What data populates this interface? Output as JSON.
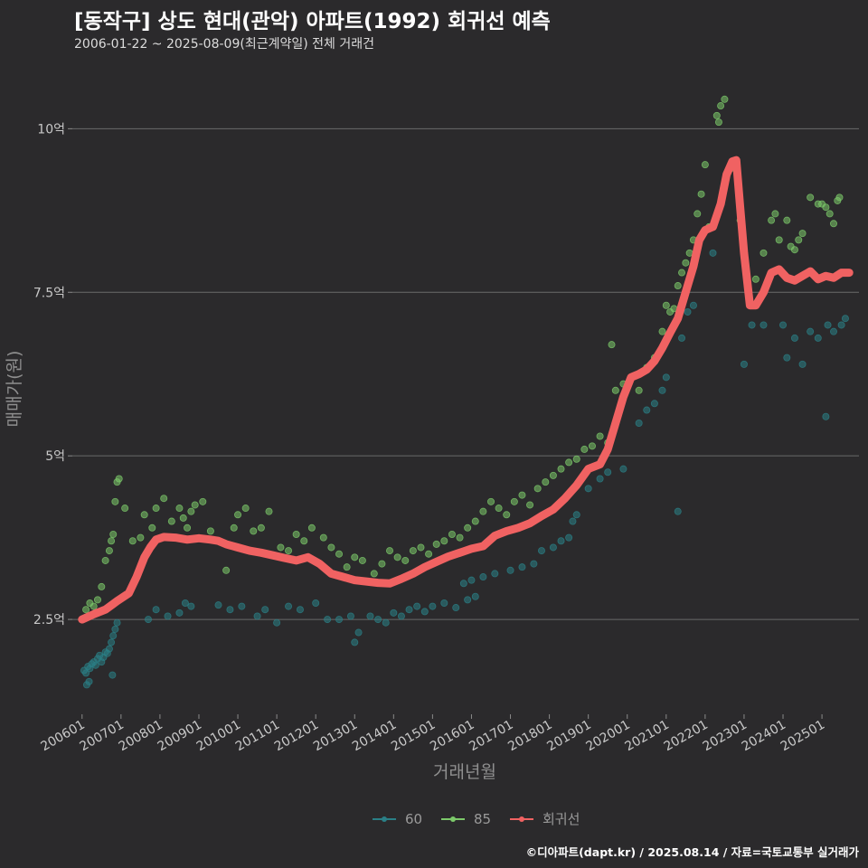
{
  "chart_data": {
    "type": "scatter",
    "title": "[동작구] 상도 현대(관악) 아파트(1992) 회귀선 예측",
    "subtitle": "2006-01-22 ~ 2025-08-09(최근계약일) 전체 거래건",
    "xlabel": "거래년월",
    "ylabel": "매매가(원)",
    "caption": "©디아파트(dapt.kr) / 2025.08.14 / 자료=국토교통부 실거래가",
    "x_ticks": [
      "200601",
      "200701",
      "200801",
      "200901",
      "201001",
      "201101",
      "201201",
      "201301",
      "201401",
      "201501",
      "201601",
      "201701",
      "201801",
      "201901",
      "202001",
      "202101",
      "202201",
      "202301",
      "202401",
      "202501"
    ],
    "y_ticks": [
      {
        "value": 2.5,
        "label": "2.5억"
      },
      {
        "value": 5,
        "label": "5억"
      },
      {
        "value": 7.5,
        "label": "7.5억"
      },
      {
        "value": 10,
        "label": "10억"
      }
    ],
    "xlim": [
      2005.75,
      2025.95
    ],
    "ylim": [
      1.05,
      11.0
    ],
    "grid": "horizontal",
    "legend_position": "bottom",
    "colors": {
      "60": "#2a7f86",
      "85": "#7cc96a",
      "trend": "#f06262"
    },
    "series": [
      {
        "name": "60",
        "kind": "scatter",
        "color": "#2a7f86",
        "points": [
          [
            2006.05,
            1.72
          ],
          [
            2006.1,
            1.68
          ],
          [
            2006.15,
            1.78
          ],
          [
            2006.2,
            1.75
          ],
          [
            2006.25,
            1.82
          ],
          [
            2006.3,
            1.85
          ],
          [
            2006.35,
            1.8
          ],
          [
            2006.4,
            1.9
          ],
          [
            2006.45,
            1.95
          ],
          [
            2006.5,
            1.85
          ],
          [
            2006.55,
            1.92
          ],
          [
            2006.6,
            2.0
          ],
          [
            2006.65,
            1.98
          ],
          [
            2006.7,
            2.05
          ],
          [
            2006.75,
            2.15
          ],
          [
            2006.8,
            2.25
          ],
          [
            2006.85,
            2.35
          ],
          [
            2006.9,
            2.45
          ],
          [
            2006.12,
            1.5
          ],
          [
            2006.18,
            1.55
          ],
          [
            2006.78,
            1.65
          ],
          [
            2007.7,
            2.5
          ],
          [
            2007.9,
            2.65
          ],
          [
            2008.2,
            2.55
          ],
          [
            2008.5,
            2.6
          ],
          [
            2008.65,
            2.75
          ],
          [
            2008.8,
            2.7
          ],
          [
            2009.5,
            2.72
          ],
          [
            2009.8,
            2.65
          ],
          [
            2010.1,
            2.7
          ],
          [
            2010.5,
            2.55
          ],
          [
            2010.7,
            2.65
          ],
          [
            2011.0,
            2.45
          ],
          [
            2011.3,
            2.7
          ],
          [
            2011.6,
            2.65
          ],
          [
            2012.0,
            2.75
          ],
          [
            2012.3,
            2.5
          ],
          [
            2012.6,
            2.5
          ],
          [
            2012.9,
            2.55
          ],
          [
            2013.0,
            2.15
          ],
          [
            2013.1,
            2.3
          ],
          [
            2013.4,
            2.55
          ],
          [
            2013.6,
            2.5
          ],
          [
            2013.8,
            2.45
          ],
          [
            2014.0,
            2.6
          ],
          [
            2014.2,
            2.55
          ],
          [
            2014.4,
            2.65
          ],
          [
            2014.6,
            2.7
          ],
          [
            2014.8,
            2.62
          ],
          [
            2015.0,
            2.7
          ],
          [
            2015.3,
            2.75
          ],
          [
            2015.6,
            2.68
          ],
          [
            2015.9,
            2.8
          ],
          [
            2016.1,
            2.85
          ],
          [
            2015.8,
            3.05
          ],
          [
            2016.0,
            3.1
          ],
          [
            2016.3,
            3.15
          ],
          [
            2016.6,
            3.2
          ],
          [
            2017.0,
            3.25
          ],
          [
            2017.3,
            3.3
          ],
          [
            2017.6,
            3.35
          ],
          [
            2017.8,
            3.55
          ],
          [
            2018.1,
            3.6
          ],
          [
            2018.3,
            3.7
          ],
          [
            2018.5,
            3.75
          ],
          [
            2018.6,
            4.0
          ],
          [
            2018.7,
            4.1
          ],
          [
            2019.0,
            4.5
          ],
          [
            2019.3,
            4.65
          ],
          [
            2019.5,
            4.75
          ],
          [
            2019.9,
            4.8
          ],
          [
            2020.3,
            5.5
          ],
          [
            2020.5,
            5.7
          ],
          [
            2020.7,
            5.8
          ],
          [
            2020.9,
            6.0
          ],
          [
            2021.0,
            6.2
          ],
          [
            2021.3,
            4.15
          ],
          [
            2021.4,
            6.8
          ],
          [
            2021.55,
            7.2
          ],
          [
            2021.7,
            7.3
          ],
          [
            2022.2,
            8.1
          ],
          [
            2023.0,
            6.4
          ],
          [
            2023.2,
            7.0
          ],
          [
            2023.5,
            7.0
          ],
          [
            2024.0,
            7.0
          ],
          [
            2024.1,
            6.5
          ],
          [
            2024.3,
            6.8
          ],
          [
            2024.5,
            6.4
          ],
          [
            2024.7,
            6.9
          ],
          [
            2024.9,
            6.8
          ],
          [
            2025.1,
            5.6
          ],
          [
            2025.15,
            7.0
          ],
          [
            2025.3,
            6.9
          ],
          [
            2025.5,
            7.0
          ],
          [
            2025.6,
            7.1
          ]
        ]
      },
      {
        "name": "85",
        "kind": "scatter",
        "color": "#7cc96a",
        "points": [
          [
            2006.1,
            2.65
          ],
          [
            2006.2,
            2.75
          ],
          [
            2006.3,
            2.7
          ],
          [
            2006.4,
            2.8
          ],
          [
            2006.5,
            3.0
          ],
          [
            2006.6,
            3.4
          ],
          [
            2006.7,
            3.55
          ],
          [
            2006.75,
            3.7
          ],
          [
            2006.8,
            3.8
          ],
          [
            2006.85,
            4.3
          ],
          [
            2006.9,
            4.6
          ],
          [
            2006.95,
            4.65
          ],
          [
            2007.1,
            4.2
          ],
          [
            2007.3,
            3.7
          ],
          [
            2007.5,
            3.75
          ],
          [
            2007.6,
            4.1
          ],
          [
            2007.8,
            3.9
          ],
          [
            2007.9,
            4.2
          ],
          [
            2008.1,
            4.35
          ],
          [
            2008.3,
            4.0
          ],
          [
            2008.5,
            4.2
          ],
          [
            2008.6,
            4.05
          ],
          [
            2008.7,
            3.9
          ],
          [
            2008.8,
            4.15
          ],
          [
            2008.9,
            4.25
          ],
          [
            2009.1,
            4.3
          ],
          [
            2009.3,
            3.85
          ],
          [
            2009.5,
            3.7
          ],
          [
            2009.7,
            3.25
          ],
          [
            2009.9,
            3.9
          ],
          [
            2010.0,
            4.1
          ],
          [
            2010.2,
            4.2
          ],
          [
            2010.4,
            3.85
          ],
          [
            2010.6,
            3.9
          ],
          [
            2010.8,
            4.15
          ],
          [
            2011.1,
            3.6
          ],
          [
            2011.3,
            3.55
          ],
          [
            2011.5,
            3.8
          ],
          [
            2011.7,
            3.7
          ],
          [
            2011.9,
            3.9
          ],
          [
            2012.2,
            3.75
          ],
          [
            2012.4,
            3.6
          ],
          [
            2012.6,
            3.5
          ],
          [
            2012.8,
            3.3
          ],
          [
            2013.0,
            3.45
          ],
          [
            2013.2,
            3.4
          ],
          [
            2013.5,
            3.2
          ],
          [
            2013.7,
            3.35
          ],
          [
            2013.9,
            3.55
          ],
          [
            2014.1,
            3.45
          ],
          [
            2014.3,
            3.4
          ],
          [
            2014.5,
            3.55
          ],
          [
            2014.7,
            3.6
          ],
          [
            2014.9,
            3.5
          ],
          [
            2015.1,
            3.65
          ],
          [
            2015.3,
            3.7
          ],
          [
            2015.5,
            3.8
          ],
          [
            2015.7,
            3.75
          ],
          [
            2015.9,
            3.9
          ],
          [
            2016.1,
            4.0
          ],
          [
            2016.3,
            4.15
          ],
          [
            2016.5,
            4.3
          ],
          [
            2016.7,
            4.2
          ],
          [
            2016.9,
            4.1
          ],
          [
            2017.1,
            4.3
          ],
          [
            2017.3,
            4.4
          ],
          [
            2017.5,
            4.25
          ],
          [
            2017.7,
            4.5
          ],
          [
            2017.9,
            4.6
          ],
          [
            2018.1,
            4.7
          ],
          [
            2018.3,
            4.8
          ],
          [
            2018.5,
            4.9
          ],
          [
            2018.7,
            4.95
          ],
          [
            2018.9,
            5.1
          ],
          [
            2019.1,
            5.15
          ],
          [
            2019.3,
            5.3
          ],
          [
            2019.5,
            5.2
          ],
          [
            2019.6,
            6.7
          ],
          [
            2019.7,
            6.0
          ],
          [
            2019.9,
            6.1
          ],
          [
            2020.1,
            6.2
          ],
          [
            2020.3,
            6.0
          ],
          [
            2020.5,
            6.35
          ],
          [
            2020.7,
            6.5
          ],
          [
            2020.9,
            6.9
          ],
          [
            2021.0,
            7.3
          ],
          [
            2021.1,
            7.2
          ],
          [
            2021.2,
            7.25
          ],
          [
            2021.3,
            7.6
          ],
          [
            2021.4,
            7.8
          ],
          [
            2021.5,
            7.95
          ],
          [
            2021.6,
            8.1
          ],
          [
            2021.7,
            8.3
          ],
          [
            2021.8,
            8.7
          ],
          [
            2021.9,
            9.0
          ],
          [
            2022.0,
            9.45
          ],
          [
            2022.1,
            8.5
          ],
          [
            2022.3,
            10.2
          ],
          [
            2022.4,
            10.35
          ],
          [
            2022.5,
            10.45
          ],
          [
            2022.35,
            10.1
          ],
          [
            2022.7,
            9.4
          ],
          [
            2022.9,
            8.6
          ],
          [
            2023.1,
            7.6
          ],
          [
            2023.3,
            7.7
          ],
          [
            2023.5,
            8.1
          ],
          [
            2023.7,
            8.6
          ],
          [
            2023.8,
            8.7
          ],
          [
            2023.9,
            8.3
          ],
          [
            2024.1,
            8.6
          ],
          [
            2024.2,
            8.2
          ],
          [
            2024.3,
            8.15
          ],
          [
            2024.4,
            8.3
          ],
          [
            2024.5,
            8.4
          ],
          [
            2024.7,
            8.95
          ],
          [
            2024.9,
            8.85
          ],
          [
            2025.0,
            8.85
          ],
          [
            2025.1,
            8.8
          ],
          [
            2025.2,
            8.7
          ],
          [
            2025.3,
            8.55
          ],
          [
            2025.4,
            8.9
          ],
          [
            2025.45,
            8.95
          ]
        ]
      },
      {
        "name": "회귀선",
        "kind": "line",
        "color": "#f06262",
        "points": [
          [
            2006.0,
            2.5
          ],
          [
            2006.3,
            2.58
          ],
          [
            2006.6,
            2.65
          ],
          [
            2006.9,
            2.78
          ],
          [
            2007.2,
            2.9
          ],
          [
            2007.4,
            3.15
          ],
          [
            2007.6,
            3.45
          ],
          [
            2007.75,
            3.6
          ],
          [
            2007.9,
            3.72
          ],
          [
            2008.1,
            3.76
          ],
          [
            2008.4,
            3.75
          ],
          [
            2008.7,
            3.72
          ],
          [
            2009.0,
            3.74
          ],
          [
            2009.3,
            3.72
          ],
          [
            2009.5,
            3.7
          ],
          [
            2009.7,
            3.65
          ],
          [
            2010.0,
            3.6
          ],
          [
            2010.3,
            3.55
          ],
          [
            2010.6,
            3.52
          ],
          [
            2010.9,
            3.48
          ],
          [
            2011.2,
            3.44
          ],
          [
            2011.5,
            3.4
          ],
          [
            2011.8,
            3.45
          ],
          [
            2012.1,
            3.35
          ],
          [
            2012.4,
            3.2
          ],
          [
            2012.7,
            3.15
          ],
          [
            2013.0,
            3.1
          ],
          [
            2013.3,
            3.08
          ],
          [
            2013.6,
            3.06
          ],
          [
            2013.9,
            3.05
          ],
          [
            2014.2,
            3.12
          ],
          [
            2014.5,
            3.2
          ],
          [
            2014.8,
            3.3
          ],
          [
            2015.1,
            3.38
          ],
          [
            2015.4,
            3.46
          ],
          [
            2015.7,
            3.52
          ],
          [
            2016.0,
            3.58
          ],
          [
            2016.3,
            3.62
          ],
          [
            2016.6,
            3.78
          ],
          [
            2016.9,
            3.85
          ],
          [
            2017.2,
            3.9
          ],
          [
            2017.5,
            3.97
          ],
          [
            2017.8,
            4.08
          ],
          [
            2018.1,
            4.18
          ],
          [
            2018.4,
            4.35
          ],
          [
            2018.7,
            4.55
          ],
          [
            2019.0,
            4.8
          ],
          [
            2019.3,
            4.87
          ],
          [
            2019.5,
            5.1
          ],
          [
            2019.7,
            5.5
          ],
          [
            2019.9,
            5.9
          ],
          [
            2020.1,
            6.2
          ],
          [
            2020.3,
            6.25
          ],
          [
            2020.5,
            6.32
          ],
          [
            2020.7,
            6.45
          ],
          [
            2020.9,
            6.65
          ],
          [
            2021.1,
            6.88
          ],
          [
            2021.3,
            7.1
          ],
          [
            2021.5,
            7.5
          ],
          [
            2021.7,
            7.9
          ],
          [
            2021.85,
            8.3
          ],
          [
            2022.0,
            8.45
          ],
          [
            2022.2,
            8.5
          ],
          [
            2022.4,
            8.85
          ],
          [
            2022.55,
            9.3
          ],
          [
            2022.7,
            9.5
          ],
          [
            2022.8,
            9.52
          ],
          [
            2022.9,
            8.8
          ],
          [
            2023.0,
            8.1
          ],
          [
            2023.15,
            7.3
          ],
          [
            2023.3,
            7.3
          ],
          [
            2023.5,
            7.5
          ],
          [
            2023.7,
            7.8
          ],
          [
            2023.9,
            7.85
          ],
          [
            2024.1,
            7.72
          ],
          [
            2024.3,
            7.68
          ],
          [
            2024.5,
            7.75
          ],
          [
            2024.7,
            7.82
          ],
          [
            2024.9,
            7.7
          ],
          [
            2025.1,
            7.75
          ],
          [
            2025.3,
            7.72
          ],
          [
            2025.5,
            7.8
          ],
          [
            2025.7,
            7.8
          ]
        ]
      }
    ]
  }
}
